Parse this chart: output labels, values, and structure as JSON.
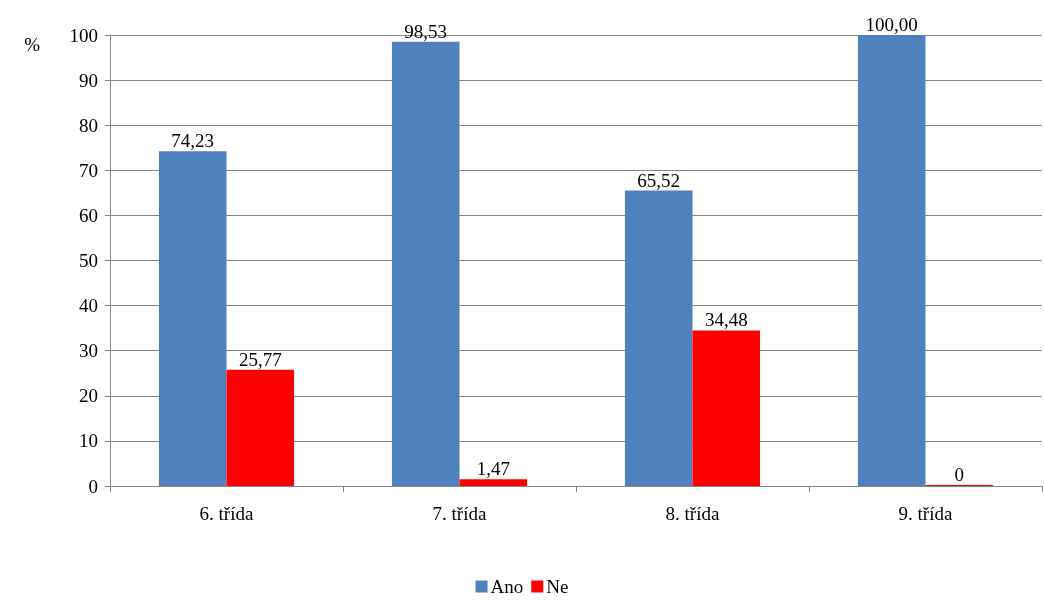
{
  "chart_data": {
    "type": "bar",
    "ylabel": "%",
    "categories": [
      "6. třída",
      "7. třída",
      "8. třída",
      "9. třída"
    ],
    "series": [
      {
        "name": "Ano",
        "color": "#4f81bd",
        "values": [
          74.23,
          98.53,
          65.52,
          100
        ],
        "value_labels": [
          "74,23",
          "98,53",
          "65,52",
          "100,00"
        ]
      },
      {
        "name": "Ne",
        "color": "#ff0000",
        "values": [
          25.77,
          1.47,
          34.48,
          0
        ],
        "value_labels": [
          "25,77",
          "1,47",
          "34,48",
          "0"
        ]
      }
    ],
    "ylim": [
      0,
      100
    ],
    "yticks": [
      0,
      10,
      20,
      30,
      40,
      50,
      60,
      70,
      80,
      90,
      100
    ],
    "grid": "y",
    "legend": "bottom"
  }
}
